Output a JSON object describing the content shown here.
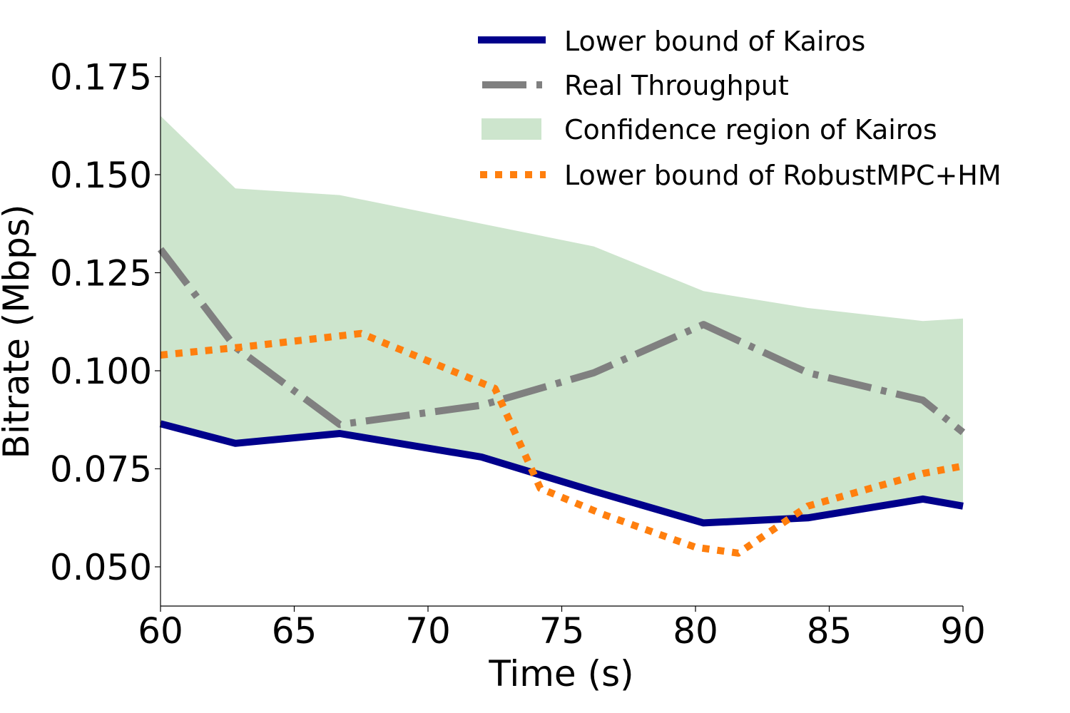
{
  "chart_data": {
    "type": "line",
    "title": "",
    "xlabel": "Time (s)",
    "ylabel": "Bitrate (Mbps)",
    "xlim": [
      60,
      90
    ],
    "ylim": [
      0.04,
      0.18
    ],
    "xticks": [
      60,
      65,
      70,
      75,
      80,
      85,
      90
    ],
    "yticks": [
      0.05,
      0.075,
      0.1,
      0.125,
      0.15,
      0.175
    ],
    "xtick_labels": [
      "60",
      "65",
      "70",
      "75",
      "80",
      "85",
      "90"
    ],
    "ytick_labels": [
      "0.050",
      "0.075",
      "0.100",
      "0.125",
      "0.150",
      "0.175"
    ],
    "grid": false,
    "legend_position": "top-right",
    "confidence_region": {
      "name": "Confidence region of Kairos",
      "color": "#cde5cd",
      "x": [
        60,
        62.8,
        66.7,
        72,
        76.2,
        80.3,
        84.2,
        88.5,
        90
      ],
      "upper": [
        0.165,
        0.1465,
        0.1448,
        0.1375,
        0.1317,
        0.1203,
        0.116,
        0.1127,
        0.1133
      ],
      "lower": [
        0.0865,
        0.0815,
        0.084,
        0.078,
        0.0693,
        0.0612,
        0.0625,
        0.0673,
        0.0655
      ]
    },
    "series": [
      {
        "name": "Lower bound of Kairos",
        "color": "#00008b",
        "style": "solid",
        "x": [
          60,
          62.8,
          66.7,
          72,
          76.2,
          80.3,
          84.2,
          88.5,
          90
        ],
        "values": [
          0.0865,
          0.0815,
          0.084,
          0.078,
          0.0693,
          0.0612,
          0.0625,
          0.0673,
          0.0655
        ]
      },
      {
        "name": "Real Throughput",
        "color": "#808080",
        "style": "dashdot",
        "x": [
          60,
          62.8,
          66.7,
          72,
          76.2,
          80.3,
          84.2,
          88.5,
          90
        ],
        "values": [
          0.131,
          0.106,
          0.0863,
          0.0912,
          0.0995,
          0.1118,
          0.0995,
          0.0925,
          0.0843
        ]
      },
      {
        "name": "Lower bound of RobustMPC+HM",
        "color": "#ff7f0e",
        "style": "dotted",
        "x": [
          60,
          63,
          67.5,
          72.5,
          74.2,
          76.5,
          80,
          81.6,
          84.2,
          88.5,
          90
        ],
        "values": [
          0.104,
          0.106,
          0.1095,
          0.0955,
          0.07,
          0.0635,
          0.055,
          0.0535,
          0.0655,
          0.0738,
          0.0757
        ]
      }
    ]
  }
}
